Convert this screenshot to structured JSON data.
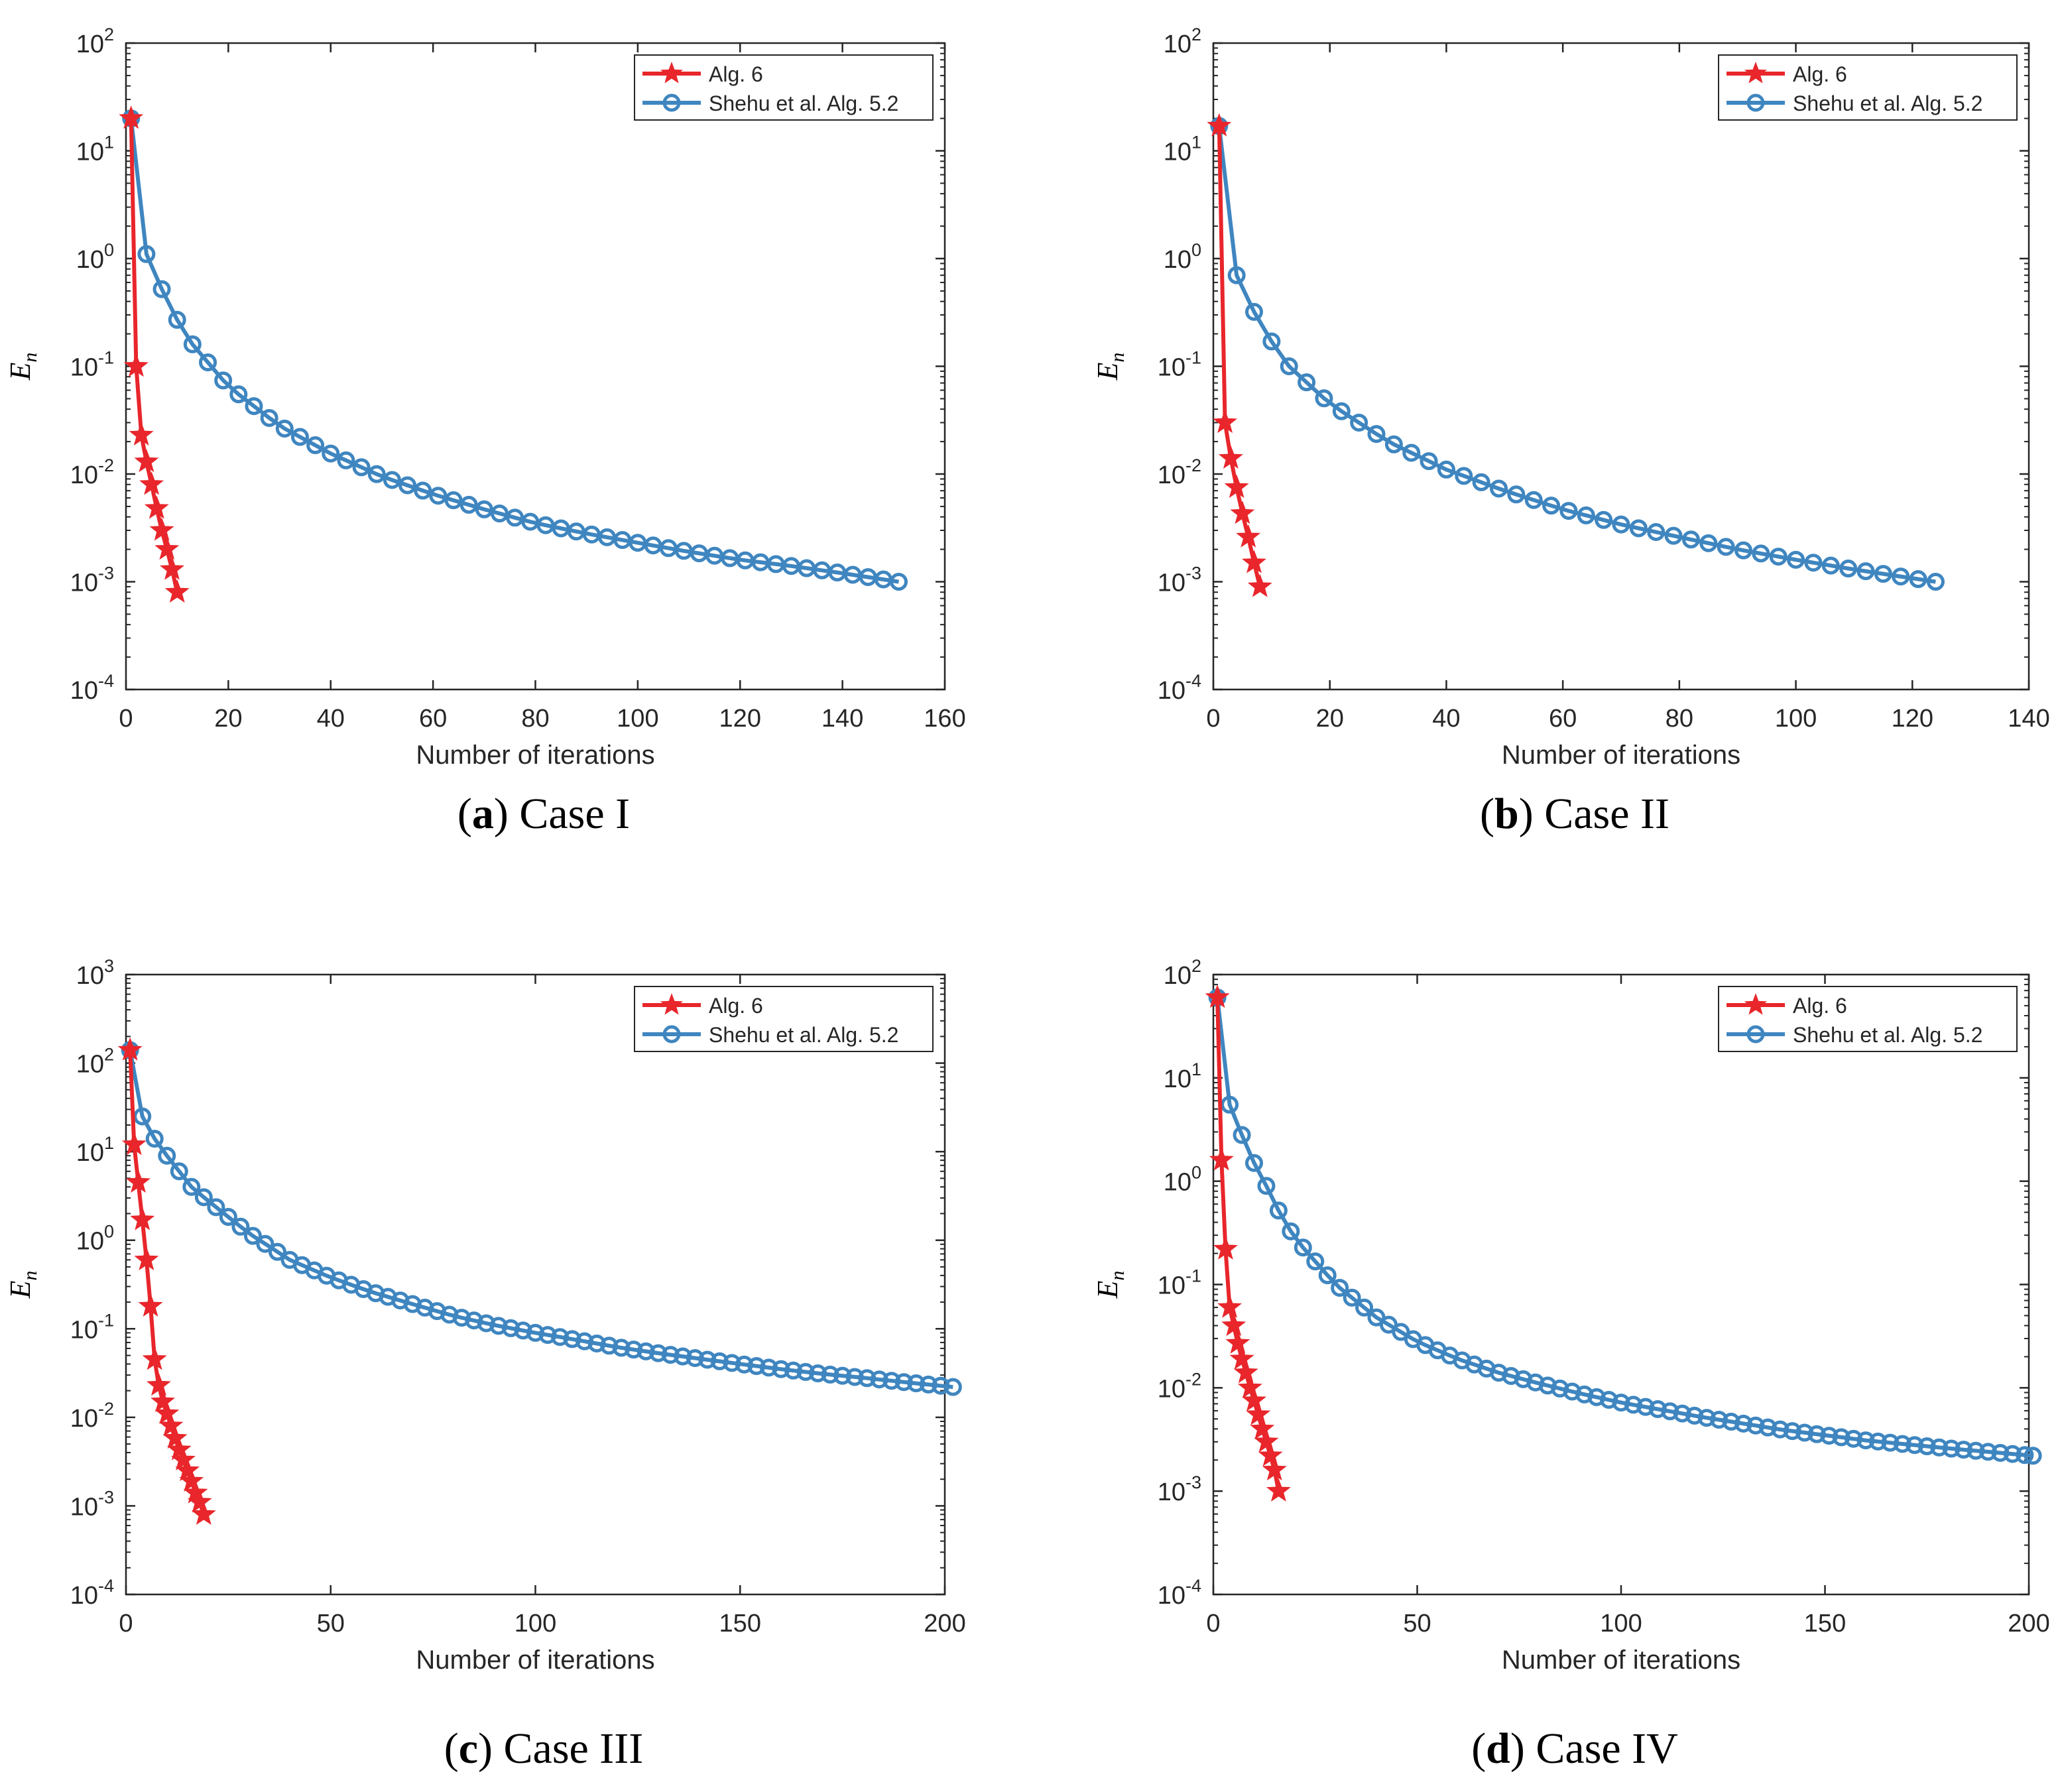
{
  "colors": {
    "alg6": "#e8262b",
    "shehu": "#3f86c0",
    "axis": "#262626"
  },
  "chart_data": [
    {
      "id": "a",
      "type": "line",
      "yscale": "log",
      "caption_letter": "a",
      "caption_text": "Case I",
      "xlabel": "Number of iterations",
      "ylabel_main": "E",
      "ylabel_sub": "n",
      "xlim": [
        0,
        160
      ],
      "xticks": [
        0,
        20,
        40,
        60,
        80,
        100,
        120,
        140,
        160
      ],
      "ylim_exp": [
        -4,
        2
      ],
      "yticks_exp": [
        -4,
        -3,
        -2,
        -1,
        0,
        1,
        2
      ],
      "legend": [
        "Alg. 6",
        "Shehu et al. Alg. 5.2"
      ],
      "legend_position": "top-right",
      "series": [
        {
          "name": "Alg. 6",
          "marker": "star",
          "x": [
            1,
            2,
            3,
            4,
            5,
            6,
            7,
            8,
            9,
            10
          ],
          "y": [
            20,
            0.1,
            0.023,
            0.013,
            0.008,
            0.0048,
            0.003,
            0.002,
            0.0013,
            0.0008
          ]
        },
        {
          "name": "Shehu et al. Alg. 5.2",
          "marker": "circle",
          "n_end": 151,
          "y_start": 20,
          "anchors": [
            [
              1,
              20
            ],
            [
              4,
              1.1
            ],
            [
              7,
              0.52
            ],
            [
              10,
              0.27
            ],
            [
              13,
              0.16
            ],
            [
              20,
              0.065
            ],
            [
              30,
              0.028
            ],
            [
              40,
              0.0155
            ],
            [
              50,
              0.0095
            ],
            [
              60,
              0.0065
            ],
            [
              70,
              0.0047
            ],
            [
              80,
              0.0035
            ],
            [
              90,
              0.0028
            ],
            [
              100,
              0.0023
            ],
            [
              110,
              0.0019
            ],
            [
              120,
              0.0016
            ],
            [
              130,
              0.0014
            ],
            [
              140,
              0.0012
            ],
            [
              151,
              0.001
            ]
          ]
        }
      ]
    },
    {
      "id": "b",
      "type": "line",
      "yscale": "log",
      "caption_letter": "b",
      "caption_text": "Case II",
      "xlabel": "Number of iterations",
      "ylabel_main": "E",
      "ylabel_sub": "n",
      "xlim": [
        0,
        140
      ],
      "xticks": [
        0,
        20,
        40,
        60,
        80,
        100,
        120,
        140
      ],
      "ylim_exp": [
        -4,
        2
      ],
      "yticks_exp": [
        -4,
        -3,
        -2,
        -1,
        0,
        1,
        2
      ],
      "legend": [
        "Alg. 6",
        "Shehu et al. Alg. 5.2"
      ],
      "legend_position": "top-right",
      "series": [
        {
          "name": "Alg. 6",
          "marker": "star",
          "x": [
            1,
            2,
            3,
            4,
            5,
            6,
            7,
            8
          ],
          "y": [
            17,
            0.03,
            0.014,
            0.0075,
            0.0043,
            0.0026,
            0.0015,
            0.0009
          ]
        },
        {
          "name": "Shehu et al. Alg. 5.2",
          "marker": "circle",
          "n_end": 124,
          "anchors": [
            [
              1,
              17
            ],
            [
              4,
              0.7
            ],
            [
              7,
              0.32
            ],
            [
              10,
              0.17
            ],
            [
              13,
              0.1
            ],
            [
              20,
              0.045
            ],
            [
              30,
              0.02
            ],
            [
              40,
              0.011
            ],
            [
              50,
              0.007
            ],
            [
              60,
              0.0047
            ],
            [
              70,
              0.0034
            ],
            [
              80,
              0.0026
            ],
            [
              90,
              0.002
            ],
            [
              100,
              0.0016
            ],
            [
              110,
              0.0013
            ],
            [
              124,
              0.001
            ]
          ]
        }
      ]
    },
    {
      "id": "c",
      "type": "line",
      "yscale": "log",
      "caption_letter": "c",
      "caption_text": "Case III",
      "xlabel": "Number of iterations",
      "ylabel_main": "E",
      "ylabel_sub": "n",
      "xlim": [
        0,
        200
      ],
      "xticks": [
        0,
        50,
        100,
        150,
        200
      ],
      "ylim_exp": [
        -4,
        3
      ],
      "yticks_exp": [
        -4,
        -3,
        -2,
        -1,
        0,
        1,
        2,
        3
      ],
      "legend": [
        "Alg. 6",
        "Shehu et al. Alg. 5.2"
      ],
      "legend_position": "top-right",
      "series": [
        {
          "name": "Alg. 6",
          "marker": "star",
          "x": [
            1,
            2,
            3,
            4,
            5,
            6,
            7,
            8,
            9,
            10,
            11,
            12,
            13,
            14,
            15,
            16,
            17,
            18,
            19
          ],
          "y": [
            140,
            12,
            4.5,
            1.7,
            0.6,
            0.18,
            0.045,
            0.023,
            0.015,
            0.011,
            0.008,
            0.0058,
            0.0043,
            0.0033,
            0.0025,
            0.0019,
            0.0014,
            0.0011,
            0.0008
          ]
        },
        {
          "name": "Shehu et al. Alg. 5.2",
          "marker": "circle",
          "n_end": 202,
          "anchors": [
            [
              1,
              140
            ],
            [
              4,
              25
            ],
            [
              7,
              14
            ],
            [
              10,
              9
            ],
            [
              13,
              6
            ],
            [
              16,
              4
            ],
            [
              20,
              2.8
            ],
            [
              30,
              1.2
            ],
            [
              40,
              0.6
            ],
            [
              50,
              0.38
            ],
            [
              60,
              0.26
            ],
            [
              70,
              0.19
            ],
            [
              80,
              0.14
            ],
            [
              90,
              0.11
            ],
            [
              100,
              0.09
            ],
            [
              110,
              0.075
            ],
            [
              120,
              0.062
            ],
            [
              130,
              0.053
            ],
            [
              140,
              0.046
            ],
            [
              150,
              0.04
            ],
            [
              160,
              0.035
            ],
            [
              170,
              0.031
            ],
            [
              180,
              0.028
            ],
            [
              190,
              0.025
            ],
            [
              202,
              0.022
            ]
          ]
        }
      ]
    },
    {
      "id": "d",
      "type": "line",
      "yscale": "log",
      "caption_letter": "d",
      "caption_text": "Case IV",
      "xlabel": "Number of iterations",
      "ylabel_main": "E",
      "ylabel_sub": "n",
      "xlim": [
        0,
        200
      ],
      "xticks": [
        0,
        50,
        100,
        150,
        200
      ],
      "ylim_exp": [
        -4,
        2
      ],
      "yticks_exp": [
        -4,
        -3,
        -2,
        -1,
        0,
        1,
        2
      ],
      "legend": [
        "Alg. 6",
        "Shehu et al. Alg. 5.2"
      ],
      "legend_position": "top-right",
      "series": [
        {
          "name": "Alg. 6",
          "marker": "star",
          "x": [
            1,
            2,
            3,
            4,
            5,
            6,
            7,
            8,
            9,
            10,
            11,
            12,
            13,
            14,
            15,
            16
          ],
          "y": [
            60,
            1.6,
            0.22,
            0.06,
            0.04,
            0.027,
            0.019,
            0.014,
            0.01,
            0.0075,
            0.0055,
            0.004,
            0.003,
            0.0022,
            0.0016,
            0.001
          ]
        },
        {
          "name": "Shehu et al. Alg. 5.2",
          "marker": "circle",
          "n_end": 201,
          "anchors": [
            [
              1,
              60
            ],
            [
              4,
              5.5
            ],
            [
              7,
              2.8
            ],
            [
              10,
              1.5
            ],
            [
              13,
              0.9
            ],
            [
              16,
              0.52
            ],
            [
              20,
              0.28
            ],
            [
              30,
              0.1
            ],
            [
              40,
              0.048
            ],
            [
              50,
              0.028
            ],
            [
              60,
              0.019
            ],
            [
              70,
              0.014
            ],
            [
              80,
              0.011
            ],
            [
              90,
              0.0088
            ],
            [
              100,
              0.0072
            ],
            [
              120,
              0.0052
            ],
            [
              140,
              0.0039
            ],
            [
              160,
              0.0031
            ],
            [
              180,
              0.0026
            ],
            [
              201,
              0.0022
            ]
          ]
        }
      ]
    }
  ]
}
